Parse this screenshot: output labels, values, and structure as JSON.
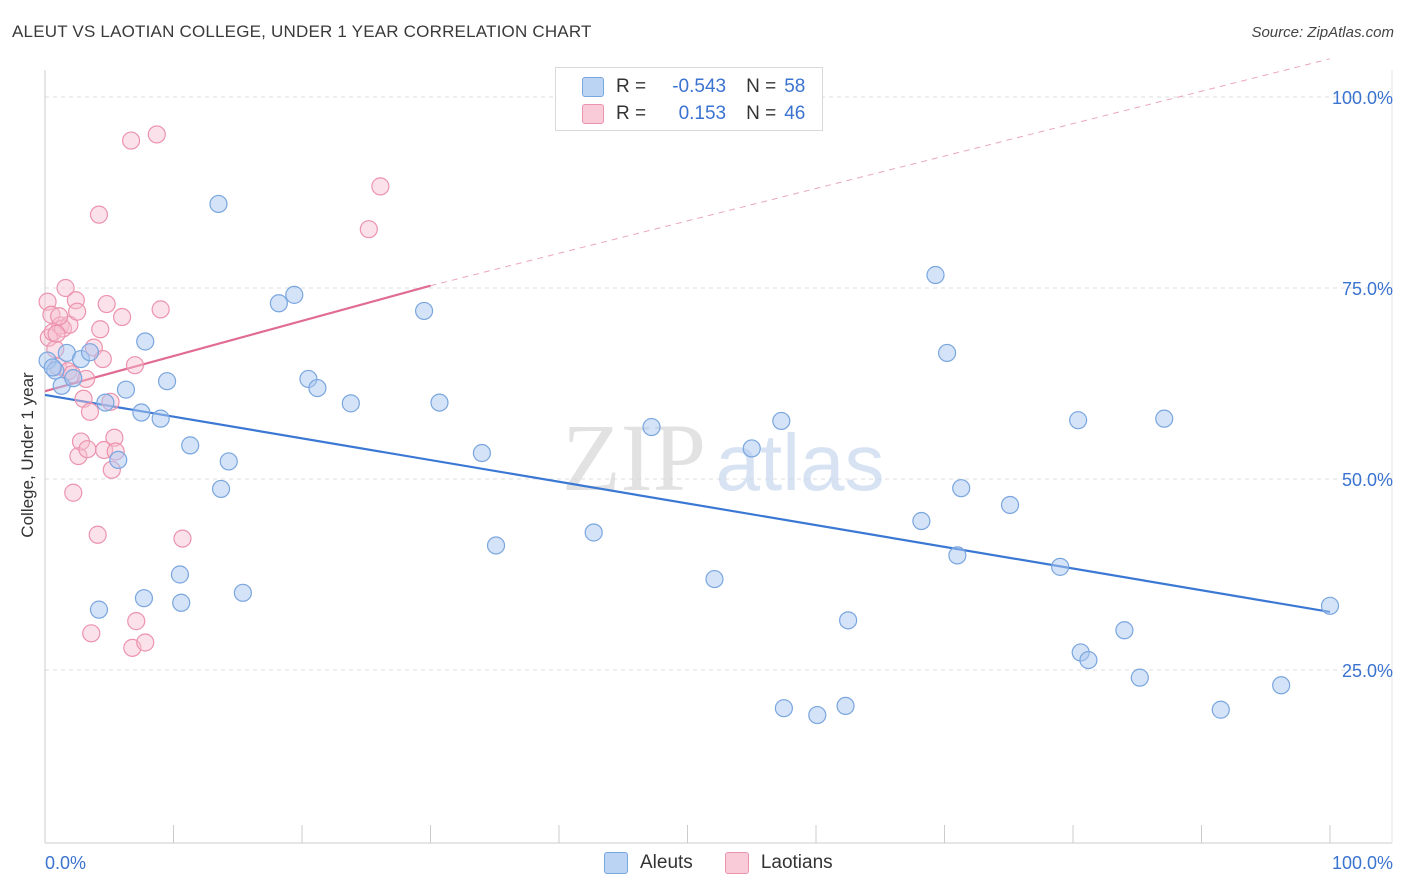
{
  "title": "ALEUT VS LAOTIAN COLLEGE, UNDER 1 YEAR CORRELATION CHART",
  "source": "Source: ZipAtlas.com",
  "watermark": {
    "zip": "ZIP",
    "atlas": "atlas"
  },
  "legend": {
    "rows": [
      {
        "r_label": "R =",
        "r_value": "-0.543",
        "n_label": "N =",
        "n_value": "58"
      },
      {
        "r_label": "R =",
        "r_value": "0.153",
        "n_label": "N =",
        "n_value": "46"
      }
    ]
  },
  "bottom_legend": {
    "aleuts": "Aleuts",
    "laotians": "Laotians"
  },
  "colors": {
    "aleuts_fill": "#aac8f0",
    "aleuts_stroke": "#7aa6df",
    "aleuts_line": "#3a78d4",
    "laotians_fill": "#f7bfd0",
    "laotians_stroke": "#ec93ae",
    "laotians_line": "#e06c93",
    "tick_label": "#3b73d0",
    "grid": "#dddddd"
  },
  "chart_data": {
    "type": "scatter",
    "title": "ALEUT VS LAOTIAN COLLEGE, UNDER 1 YEAR CORRELATION CHART",
    "xlabel": "",
    "ylabel": "College, Under 1 year",
    "xlim": [
      0,
      100
    ],
    "ylim": [
      0,
      104
    ],
    "x_tick_labels": [
      "0.0%",
      "100.0%"
    ],
    "y_ticks": [
      {
        "value": 100,
        "label": "100.0%"
      },
      {
        "value": 75,
        "label": "75.0%"
      },
      {
        "value": 50,
        "label": "50.0%"
      },
      {
        "value": 25,
        "label": "25.0%"
      }
    ],
    "series": [
      {
        "name": "Aleuts",
        "r": -0.543,
        "n": 58,
        "trend": {
          "x0": 0,
          "y0": 61.0,
          "x1": 100,
          "y1": 32.6
        },
        "points": [
          [
            0.2,
            65.5
          ],
          [
            0.8,
            64.2
          ],
          [
            1.3,
            62.2
          ],
          [
            1.7,
            66.5
          ],
          [
            2.2,
            63.2
          ],
          [
            2.8,
            65.7
          ],
          [
            3.5,
            66.6
          ],
          [
            4.7,
            60.0
          ],
          [
            5.7,
            52.5
          ],
          [
            6.3,
            61.7
          ],
          [
            7.5,
            58.7
          ],
          [
            7.7,
            34.4
          ],
          [
            7.8,
            68.0
          ],
          [
            9.0,
            57.9
          ],
          [
            9.5,
            62.8
          ],
          [
            10.5,
            37.5
          ],
          [
            10.6,
            33.8
          ],
          [
            11.3,
            54.4
          ],
          [
            13.5,
            86.0
          ],
          [
            13.7,
            48.7
          ],
          [
            14.3,
            52.3
          ],
          [
            15.4,
            35.1
          ],
          [
            18.2,
            73.0
          ],
          [
            19.4,
            74.1
          ],
          [
            20.5,
            63.1
          ],
          [
            21.2,
            61.9
          ],
          [
            23.8,
            59.9
          ],
          [
            29.5,
            72.0
          ],
          [
            30.7,
            60.0
          ],
          [
            34.0,
            53.4
          ],
          [
            35.1,
            41.3
          ],
          [
            42.7,
            43.0
          ],
          [
            47.2,
            56.8
          ],
          [
            52.1,
            36.9
          ],
          [
            55.0,
            54.0
          ],
          [
            57.3,
            57.6
          ],
          [
            57.5,
            20.0
          ],
          [
            60.1,
            19.1
          ],
          [
            62.3,
            20.3
          ],
          [
            62.5,
            31.5
          ],
          [
            68.2,
            44.5
          ],
          [
            69.3,
            76.7
          ],
          [
            70.2,
            66.5
          ],
          [
            71.0,
            40.0
          ],
          [
            71.3,
            48.8
          ],
          [
            75.1,
            46.6
          ],
          [
            79.0,
            38.5
          ],
          [
            80.4,
            57.7
          ],
          [
            80.6,
            27.3
          ],
          [
            81.2,
            26.3
          ],
          [
            84.0,
            30.2
          ],
          [
            85.2,
            24.0
          ],
          [
            87.1,
            57.9
          ],
          [
            91.5,
            19.8
          ],
          [
            96.2,
            23.0
          ],
          [
            100.0,
            33.4
          ],
          [
            4.2,
            32.9
          ],
          [
            0.6,
            64.6
          ]
        ]
      },
      {
        "name": "Laotians",
        "r": 0.153,
        "n": 46,
        "trend": {
          "x0": 0,
          "y0": 61.5,
          "x1": 30.0,
          "y1": 75.3,
          "dash_x1": 100,
          "dash_y1": 105.0
        },
        "points": [
          [
            0.2,
            73.2
          ],
          [
            0.3,
            68.5
          ],
          [
            0.5,
            71.5
          ],
          [
            0.6,
            69.2
          ],
          [
            0.8,
            67.0
          ],
          [
            1.0,
            64.7
          ],
          [
            1.2,
            70.1
          ],
          [
            1.4,
            69.7
          ],
          [
            1.6,
            75.0
          ],
          [
            1.8,
            64.1
          ],
          [
            1.9,
            70.2
          ],
          [
            2.1,
            63.7
          ],
          [
            2.2,
            48.2
          ],
          [
            2.4,
            73.4
          ],
          [
            2.5,
            71.9
          ],
          [
            2.6,
            53.0
          ],
          [
            2.8,
            54.9
          ],
          [
            3.0,
            60.5
          ],
          [
            3.2,
            63.1
          ],
          [
            3.3,
            53.9
          ],
          [
            3.5,
            58.8
          ],
          [
            3.6,
            29.8
          ],
          [
            3.8,
            67.2
          ],
          [
            4.1,
            42.7
          ],
          [
            4.2,
            84.6
          ],
          [
            4.3,
            69.6
          ],
          [
            4.5,
            65.7
          ],
          [
            4.6,
            53.8
          ],
          [
            4.8,
            72.9
          ],
          [
            5.1,
            60.1
          ],
          [
            5.2,
            51.2
          ],
          [
            5.4,
            55.4
          ],
          [
            5.5,
            53.6
          ],
          [
            6.0,
            71.2
          ],
          [
            6.7,
            94.3
          ],
          [
            6.8,
            27.9
          ],
          [
            7.0,
            64.9
          ],
          [
            7.1,
            31.4
          ],
          [
            7.8,
            28.6
          ],
          [
            8.7,
            95.1
          ],
          [
            9.0,
            72.2
          ],
          [
            10.7,
            42.2
          ],
          [
            25.2,
            82.7
          ],
          [
            26.1,
            88.3
          ],
          [
            1.1,
            71.3
          ],
          [
            0.9,
            69.0
          ]
        ]
      }
    ]
  }
}
